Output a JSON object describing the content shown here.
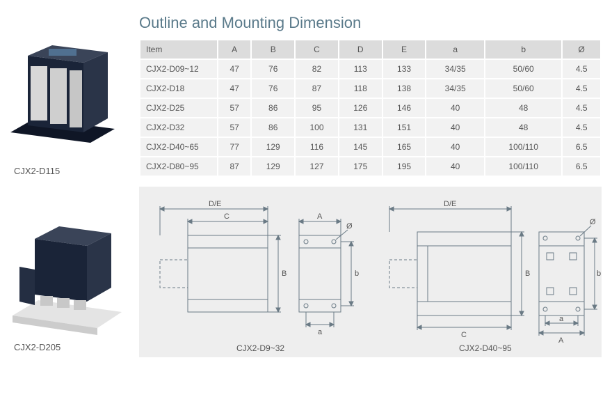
{
  "title": "Outline and Mounting Dimension",
  "products": {
    "p1": {
      "label": "CJX2-D115"
    },
    "p2": {
      "label": "CJX2-D205"
    }
  },
  "table": {
    "columns": [
      "Item",
      "A",
      "B",
      "C",
      "D",
      "E",
      "a",
      "b",
      "Ø"
    ],
    "rows": [
      [
        "CJX2-D09~12",
        "47",
        "76",
        "82",
        "113",
        "133",
        "34/35",
        "50/60",
        "4.5"
      ],
      [
        "CJX2-D18",
        "47",
        "76",
        "87",
        "118",
        "138",
        "34/35",
        "50/60",
        "4.5"
      ],
      [
        "CJX2-D25",
        "57",
        "86",
        "95",
        "126",
        "146",
        "40",
        "48",
        "4.5"
      ],
      [
        "CJX2-D32",
        "57",
        "86",
        "100",
        "131",
        "151",
        "40",
        "48",
        "4.5"
      ],
      [
        "CJX2-D40~65",
        "77",
        "129",
        "116",
        "145",
        "165",
        "40",
        "100/110",
        "6.5"
      ],
      [
        "CJX2-D80~95",
        "87",
        "129",
        "127",
        "175",
        "195",
        "40",
        "100/110",
        "6.5"
      ]
    ],
    "header_bg": "#dcdcdc",
    "row_bg": "#f2f2f2",
    "text_color": "#555555",
    "font_size": 12
  },
  "diagrams": {
    "d1": {
      "label": "CJX2-D9~32",
      "dims": [
        "D/E",
        "C",
        "A",
        "B",
        "a",
        "b",
        "Ø"
      ]
    },
    "d2": {
      "label": "CJX2-D40~95",
      "dims": [
        "D/E",
        "C",
        "A",
        "B",
        "a",
        "b",
        "Ø"
      ]
    },
    "bg": "#eeeeee",
    "stroke": "#6a7a85",
    "text_color": "#555555"
  },
  "colors": {
    "title": "#5a7a8a",
    "body_text": "#4a4a4a",
    "contactor_dark": "#1a2438",
    "contactor_light": "#d8d8d8",
    "contactor_mid": "#3a4458"
  }
}
